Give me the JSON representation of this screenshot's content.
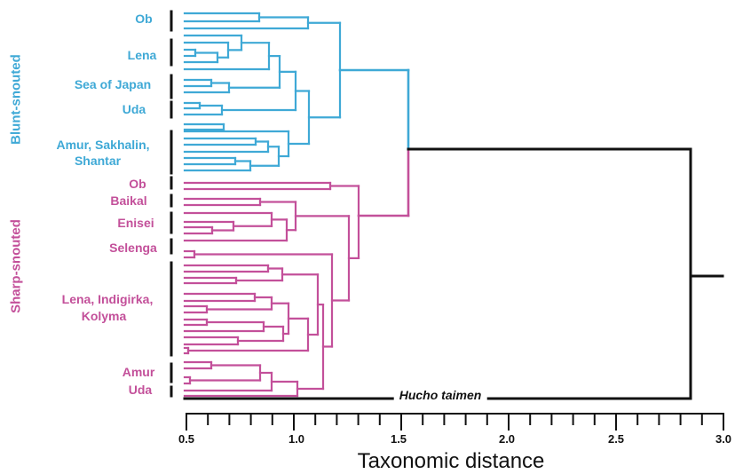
{
  "colors": {
    "blunt": "#3fa9d6",
    "sharp": "#c3509a",
    "outgroup": "#111111"
  },
  "groups": {
    "blunt": "Blunt-snouted",
    "sharp": "Sharp-snouted"
  },
  "populations": {
    "blunt_ob": "Ob",
    "blunt_lena": "Lena",
    "blunt_japan": "Sea of Japan",
    "blunt_uda": "Uda",
    "blunt_amur_1": "Amur, Sakhalin,",
    "blunt_amur_2": "Shantar",
    "sharp_ob": "Ob",
    "sharp_baikal": "Baikal",
    "sharp_enisei": "Enisei",
    "sharp_selenga": "Selenga",
    "sharp_lena_1": "Lena, Indigirka,",
    "sharp_lena_2": "Kolyma",
    "sharp_amur": "Amur",
    "sharp_uda": "Uda"
  },
  "outgroup": "Hucho taimen",
  "axis": {
    "title": "Taxonomic distance",
    "min": 0.5,
    "max": 3.0,
    "major_ticks": [
      "0.5",
      "1.0",
      "1.5",
      "2.0",
      "2.5",
      "3.0"
    ]
  }
}
